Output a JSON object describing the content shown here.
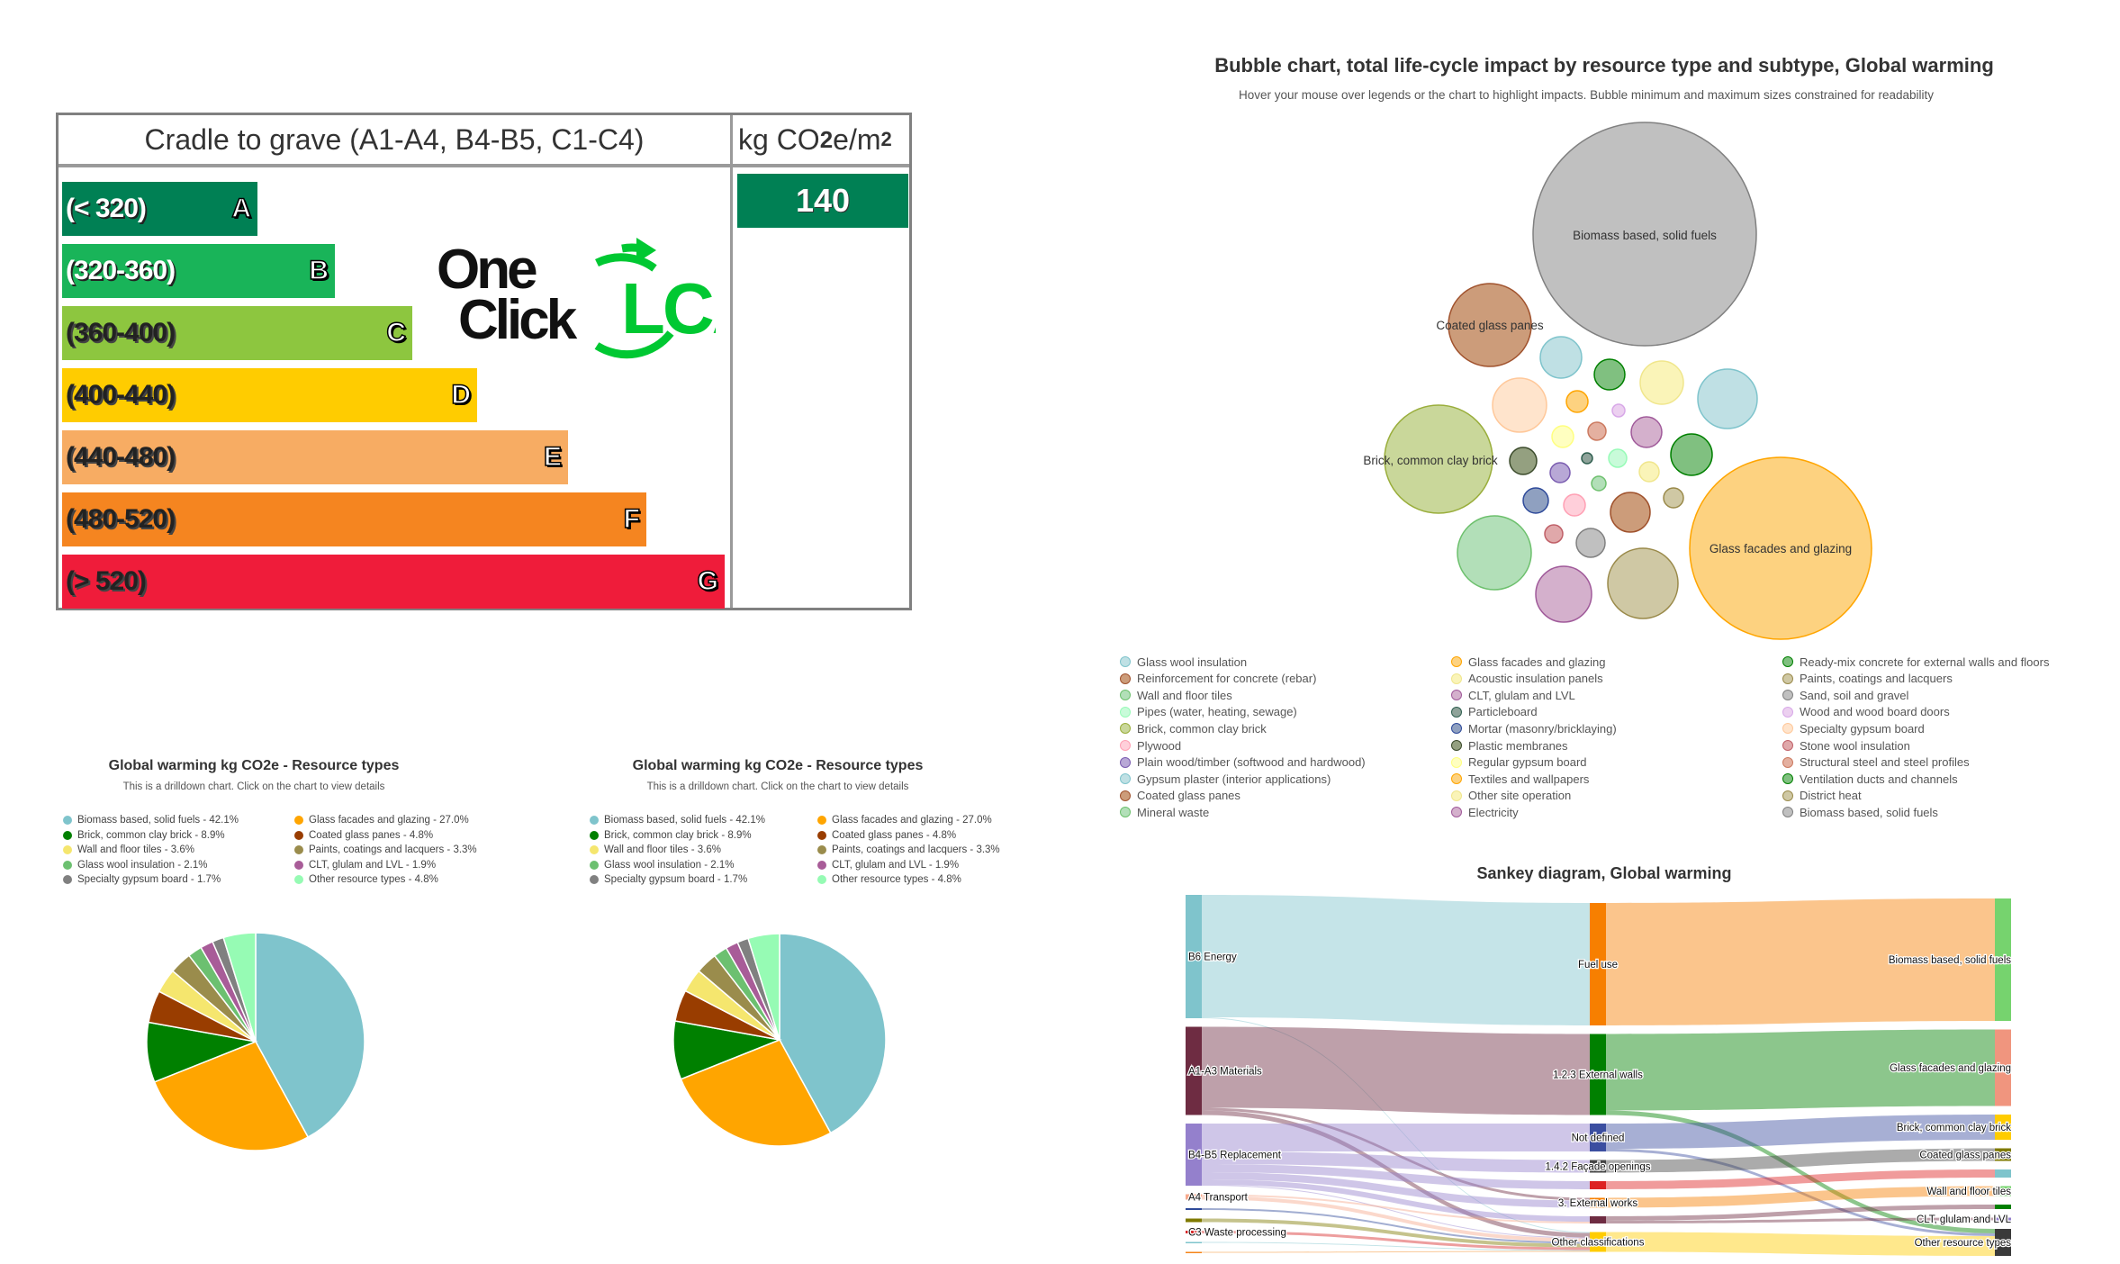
{
  "energy_label": {
    "title": "Cradle to grave (A1-A4, B4-B5, C1-C4)",
    "unit": {
      "prefix": "kg CO",
      "sub": "2",
      "mid": "e/m",
      "sup": "2"
    },
    "value": "140",
    "value_color": "#008054",
    "ratings": [
      {
        "range": "(< 320)",
        "letter": "A",
        "color": "#008054",
        "light": true
      },
      {
        "range": "(320-360)",
        "letter": "B",
        "color": "#19b459",
        "light": true
      },
      {
        "range": "(360-400)",
        "letter": "C",
        "color": "#8dc63f",
        "light": false
      },
      {
        "range": "(400-440)",
        "letter": "D",
        "color": "#ffcc00",
        "light": false
      },
      {
        "range": "(440-480)",
        "letter": "E",
        "color": "#f7ac63",
        "light": false
      },
      {
        "range": "(480-520)",
        "letter": "F",
        "color": "#f58520",
        "light": false
      },
      {
        "range": "(> 520)",
        "letter": "G",
        "color": "#ef1c3a",
        "light": false
      }
    ],
    "logo": {
      "line1": "One",
      "line2": "Click",
      "mark": "LCA",
      "mark_color": "#00c832"
    }
  },
  "chart_data": [
    {
      "type": "pie",
      "title": "Global warming kg CO2e - Resource types",
      "subtitle": "This is a drilldown chart. Click on the chart to view details",
      "slices": [
        {
          "label": "Biomass based, solid fuels",
          "value": 42.1,
          "color": "#7fc4cc"
        },
        {
          "label": "Glass facades and glazing",
          "value": 27.0,
          "color": "#ffa500"
        },
        {
          "label": "Brick, common clay brick",
          "value": 8.9,
          "color": "#008000"
        },
        {
          "label": "Coated glass panes",
          "value": 4.8,
          "color": "#993d00"
        },
        {
          "label": "Wall and floor tiles",
          "value": 3.6,
          "color": "#f5e66e"
        },
        {
          "label": "Paints, coatings and lacquers",
          "value": 3.3,
          "color": "#9a8c4c"
        },
        {
          "label": "Glass wool insulation",
          "value": 2.1,
          "color": "#6cc070"
        },
        {
          "label": "CLT, glulam and LVL",
          "value": 1.9,
          "color": "#a85c98"
        },
        {
          "label": "Specialty gypsum board",
          "value": 1.7,
          "color": "#808080"
        },
        {
          "label": "Other resource types",
          "value": 4.8,
          "color": "#96fbb4"
        }
      ],
      "legend_left": [
        "Biomass based, solid fuels - 42.1%",
        "Brick, common clay brick - 8.9%",
        "Wall and floor tiles - 3.6%",
        "Glass wool insulation - 2.1%",
        "Specialty gypsum board - 1.7%"
      ],
      "legend_right": [
        "Glass facades and glazing - 27.0%",
        "Coated glass panes - 4.8%",
        "Paints, coatings and lacquers - 3.3%",
        "CLT, glulam and LVL - 1.9%",
        "Other resource types - 4.8%"
      ]
    },
    {
      "type": "pie",
      "title": "Global warming kg CO2e - Resource types",
      "subtitle": "This is a drilldown chart. Click on the chart to view details",
      "slices": [
        {
          "label": "Biomass based, solid fuels",
          "value": 42.1,
          "color": "#7fc4cc"
        },
        {
          "label": "Glass facades and glazing",
          "value": 27.0,
          "color": "#ffa500"
        },
        {
          "label": "Brick, common clay brick",
          "value": 8.9,
          "color": "#008000"
        },
        {
          "label": "Coated glass panes",
          "value": 4.8,
          "color": "#993d00"
        },
        {
          "label": "Wall and floor tiles",
          "value": 3.6,
          "color": "#f5e66e"
        },
        {
          "label": "Paints, coatings and lacquers",
          "value": 3.3,
          "color": "#9a8c4c"
        },
        {
          "label": "Glass wool insulation",
          "value": 2.1,
          "color": "#6cc070"
        },
        {
          "label": "CLT, glulam and LVL",
          "value": 1.9,
          "color": "#a85c98"
        },
        {
          "label": "Specialty gypsum board",
          "value": 1.7,
          "color": "#808080"
        },
        {
          "label": "Other resource types",
          "value": 4.8,
          "color": "#96fbb4"
        }
      ],
      "legend_left": [
        "Biomass based, solid fuels - 42.1%",
        "Brick, common clay brick - 8.9%",
        "Wall and floor tiles - 3.6%",
        "Glass wool insulation - 2.1%",
        "Specialty gypsum board - 1.7%"
      ],
      "legend_right": [
        "Glass facades and glazing - 27.0%",
        "Coated glass panes - 4.8%",
        "Paints, coatings and lacquers - 3.3%",
        "CLT, glulam and LVL - 1.9%",
        "Other resource types - 4.8%"
      ]
    },
    {
      "type": "bubble",
      "title": "Bubble chart, total life-cycle impact by resource type and subtype, Global warming",
      "subtitle": "Hover your mouse over legends or the chart to highlight impacts. Bubble minimum and maximum sizes constrained for readability",
      "bubble_labels": [
        "Biomass based, solid fuels",
        "Coated glass panes",
        "Brick, common clay brick",
        "Glass facades and glazing"
      ],
      "legend": [
        {
          "label": "Glass wool insulation",
          "fill": "#bfe0e4",
          "stroke": "#7fc4cc"
        },
        {
          "label": "Reinforcement for concrete (rebar)",
          "fill": "#cc9c7a",
          "stroke": "#a0522d"
        },
        {
          "label": "Wall and floor tiles",
          "fill": "#b2dfb8",
          "stroke": "#6dc06d"
        },
        {
          "label": "Pipes (water, heating, sewage)",
          "fill": "#c8fbd9",
          "stroke": "#98fbb8"
        },
        {
          "label": "Brick, common clay brick",
          "fill": "#c9d79a",
          "stroke": "#9aae3c"
        },
        {
          "label": "Plywood",
          "fill": "#ffcfda",
          "stroke": "#ffa0b4"
        },
        {
          "label": "Plain wood/timber (softwood and hardwood)",
          "fill": "#b8a8d6",
          "stroke": "#7a5cb0"
        },
        {
          "label": "Gypsum plaster (interior applications)",
          "fill": "#bfe0e4",
          "stroke": "#7fc4cc"
        },
        {
          "label": "Coated glass panes",
          "fill": "#cc9c7a",
          "stroke": "#a0522d"
        },
        {
          "label": "Mineral waste",
          "fill": "#b2dfb8",
          "stroke": "#6dc06d"
        },
        {
          "label": "Glass facades and glazing",
          "fill": "#fdd280",
          "stroke": "#ffa500"
        },
        {
          "label": "Acoustic insulation panels",
          "fill": "#faf4b8",
          "stroke": "#f0e68c"
        },
        {
          "label": "CLT, glulam and LVL",
          "fill": "#d4b0cc",
          "stroke": "#a05a9a"
        },
        {
          "label": "Particleboard",
          "fill": "#8fa39a",
          "stroke": "#2f5f4f"
        },
        {
          "label": "Mortar (masonry/bricklaying)",
          "fill": "#8fa0c0",
          "stroke": "#2e4a9a"
        },
        {
          "label": "Plastic membranes",
          "fill": "#94a080",
          "stroke": "#3a4a2a"
        },
        {
          "label": "Regular gypsum board",
          "fill": "#ffffc0",
          "stroke": "#ffff80"
        },
        {
          "label": "Textiles and wallpapers",
          "fill": "#fdd280",
          "stroke": "#ffa500"
        },
        {
          "label": "Other site operation",
          "fill": "#faf4b8",
          "stroke": "#f0e68c"
        },
        {
          "label": "Electricity",
          "fill": "#d4b0cc",
          "stroke": "#a05a9a"
        },
        {
          "label": "Ready-mix concrete for external walls and floors",
          "fill": "#80c080",
          "stroke": "#008000"
        },
        {
          "label": "Paints, coatings and lacquers",
          "fill": "#cfc8a4",
          "stroke": "#9a8a4a"
        },
        {
          "label": "Sand, soil and gravel",
          "fill": "#c0c0c0",
          "stroke": "#808080"
        },
        {
          "label": "Wood and wood board doors",
          "fill": "#ecd0f0",
          "stroke": "#d8a8e8"
        },
        {
          "label": "Specialty gypsum board",
          "fill": "#ffe4cc",
          "stroke": "#ffc89a"
        },
        {
          "label": "Stone wool insulation",
          "fill": "#e0a8aa",
          "stroke": "#c06068"
        },
        {
          "label": "Structural steel and steel profiles",
          "fill": "#e4b0a0",
          "stroke": "#cc7a60"
        },
        {
          "label": "Ventilation ducts and channels",
          "fill": "#80c080",
          "stroke": "#008000"
        },
        {
          "label": "District heat",
          "fill": "#cfc8a4",
          "stroke": "#9a8a4a"
        },
        {
          "label": "Biomass based, solid fuels",
          "fill": "#c0c0c0",
          "stroke": "#808080"
        }
      ]
    },
    {
      "type": "sankey",
      "title": "Sankey diagram, Global warming",
      "columns": [
        [
          {
            "id": "b6",
            "label": "B6 Energy",
            "value": 137,
            "color": "#7fc4cc"
          },
          {
            "id": "a13",
            "label": "A1-A3 Materials",
            "value": 98,
            "color": "#6e2c42"
          },
          {
            "id": "b45",
            "label": "B4-B5 Replacement",
            "value": 69,
            "color": "#9480cc"
          },
          {
            "id": "a4",
            "label": "A4 Transport",
            "value": 6,
            "color": "#f7a98c"
          },
          {
            "id": "l5",
            "label": "",
            "value": 2,
            "color": "#2e4a9a"
          },
          {
            "id": "l6",
            "label": "",
            "value": 4,
            "color": "#7f7a00"
          },
          {
            "id": "c3",
            "label": "C3 Waste processing",
            "value": 3,
            "color": "#d62728"
          },
          {
            "id": "l8",
            "label": "",
            "value": 1,
            "color": "#7fc4cc"
          },
          {
            "id": "l9",
            "label": "",
            "value": 1,
            "color": "#f58518"
          }
        ],
        [
          {
            "id": "fuel",
            "label": "Fuel use",
            "value": 136,
            "color": "#f77f00"
          },
          {
            "id": "ext",
            "label": "1.2.3 External walls",
            "value": 90,
            "color": "#008000"
          },
          {
            "id": "nd",
            "label": "Not defined",
            "value": 31,
            "color": "#3b4ea0"
          },
          {
            "id": "fac",
            "label": "1.4.2 Façade openings",
            "value": 14,
            "color": "#444444"
          },
          {
            "id": "m5",
            "label": "",
            "value": 9,
            "color": "#dd2222"
          },
          {
            "id": "ew",
            "label": "3. External works",
            "value": 11,
            "color": "#f77f00"
          },
          {
            "id": "m7",
            "label": "",
            "value": 8,
            "color": "#6e2c42"
          },
          {
            "id": "oc",
            "label": "Other classifications",
            "value": 22,
            "color": "#ffcc00"
          }
        ],
        [
          {
            "id": "bio",
            "label": "Biomass based, solid fuels",
            "value": 136,
            "color": "#76d36e"
          },
          {
            "id": "gla",
            "label": "Glass facades and glazing",
            "value": 85,
            "color": "#f0957e"
          },
          {
            "id": "bri",
            "label": "Brick, common clay brick",
            "value": 28,
            "color": "#ffcc00"
          },
          {
            "id": "coa",
            "label": "Coated glass panes",
            "value": 14,
            "color": "#7f7a00"
          },
          {
            "id": "r5",
            "label": "",
            "value": 9,
            "color": "#7fc4cc"
          },
          {
            "id": "wft",
            "label": "Wall and floor tiles",
            "value": 11,
            "color": "#76d36e"
          },
          {
            "id": "r7",
            "label": "",
            "value": 5,
            "color": "#008000"
          },
          {
            "id": "clt",
            "label": "CLT, glulam and LVL",
            "value": 3,
            "color": "#9480cc"
          },
          {
            "id": "ort",
            "label": "Other resource types",
            "value": 30,
            "color": "#3a3a3a"
          }
        ]
      ],
      "links": [
        [
          "b6",
          "fuel",
          136
        ],
        [
          "b6",
          "oc",
          1
        ],
        [
          "a13",
          "ext",
          90
        ],
        [
          "a13",
          "ew",
          3
        ],
        [
          "a13",
          "oc",
          5
        ],
        [
          "b45",
          "nd",
          31
        ],
        [
          "b45",
          "fac",
          14
        ],
        [
          "b45",
          "m5",
          9
        ],
        [
          "b45",
          "ew",
          8
        ],
        [
          "b45",
          "m7",
          6
        ],
        [
          "b45",
          "oc",
          1
        ],
        [
          "a4",
          "m7",
          2
        ],
        [
          "a4",
          "oc",
          4
        ],
        [
          "l5",
          "oc",
          2
        ],
        [
          "l6",
          "oc",
          4
        ],
        [
          "c3",
          "oc",
          3
        ],
        [
          "l8",
          "oc",
          1
        ],
        [
          "l9",
          "oc",
          1
        ],
        [
          "fuel",
          "bio",
          136
        ],
        [
          "ext",
          "gla",
          85
        ],
        [
          "ext",
          "ort",
          5
        ],
        [
          "nd",
          "bri",
          28
        ],
        [
          "nd",
          "ort",
          3
        ],
        [
          "fac",
          "coa",
          14
        ],
        [
          "m5",
          "r5",
          9
        ],
        [
          "ew",
          "wft",
          11
        ],
        [
          "m7",
          "r7",
          5
        ],
        [
          "m7",
          "clt",
          3
        ],
        [
          "oc",
          "ort",
          22
        ]
      ]
    }
  ]
}
